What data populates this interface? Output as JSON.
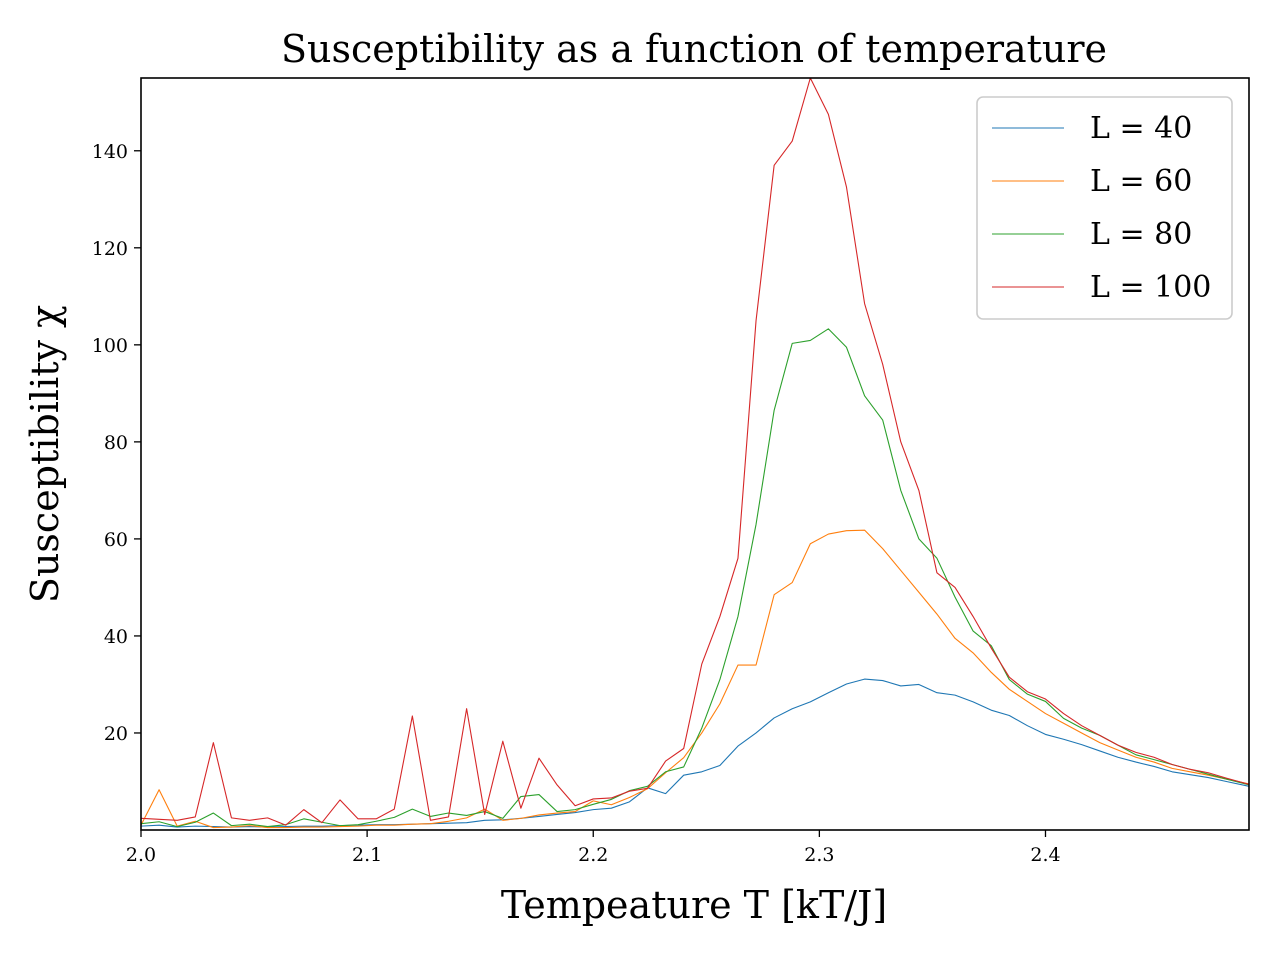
{
  "chart_data": {
    "type": "line",
    "title": "Susceptibility as a function of temperature",
    "xlabel": "Tempeature T [kT/J]",
    "ylabel": "Susceptibility χ",
    "xlim": [
      2.0,
      2.49
    ],
    "ylim": [
      0,
      155
    ],
    "xticks": [
      2.0,
      2.1,
      2.2,
      2.3,
      2.4
    ],
    "xtick_labels": [
      "2.0",
      "2.1",
      "2.2",
      "2.3",
      "2.4"
    ],
    "yticks": [
      20,
      40,
      60,
      80,
      100,
      120,
      140
    ],
    "ytick_labels": [
      "20",
      "40",
      "60",
      "80",
      "100",
      "120",
      "140"
    ],
    "grid": false,
    "legend_position": "top-right",
    "x": [
      2.0,
      2.008,
      2.016,
      2.024,
      2.032,
      2.04,
      2.048,
      2.056,
      2.064,
      2.072,
      2.08,
      2.088,
      2.096,
      2.104,
      2.112,
      2.12,
      2.128,
      2.136,
      2.144,
      2.152,
      2.16,
      2.168,
      2.176,
      2.184,
      2.192,
      2.2,
      2.208,
      2.216,
      2.224,
      2.232,
      2.24,
      2.248,
      2.256,
      2.264,
      2.272,
      2.28,
      2.288,
      2.296,
      2.304,
      2.312,
      2.32,
      2.328,
      2.336,
      2.344,
      2.352,
      2.36,
      2.368,
      2.376,
      2.384,
      2.392,
      2.4,
      2.408,
      2.416,
      2.424,
      2.432,
      2.44,
      2.448,
      2.456,
      2.464,
      2.472,
      2.48,
      2.49
    ],
    "series": [
      {
        "name": "L = 40",
        "color": "#1f77b4",
        "values": [
          0.8,
          1.0,
          0.6,
          0.8,
          0.7,
          0.6,
          0.7,
          0.6,
          0.7,
          0.8,
          0.8,
          0.9,
          1.0,
          1.1,
          1.1,
          1.2,
          1.3,
          1.4,
          1.5,
          2.0,
          2.1,
          2.4,
          2.8,
          3.2,
          3.6,
          4.2,
          4.5,
          5.8,
          8.7,
          7.5,
          11.3,
          12.0,
          13.3,
          17.3,
          20.0,
          23.1,
          25.0,
          26.4,
          28.3,
          30.1,
          31.1,
          30.8,
          29.7,
          30.0,
          28.3,
          27.8,
          26.4,
          24.7,
          23.6,
          21.5,
          19.7,
          18.7,
          17.6,
          16.3,
          15.0,
          14.0,
          13.1,
          12.0,
          11.4,
          10.8,
          10.0,
          9.0
        ]
      },
      {
        "name": "L = 60",
        "color": "#ff7f0e",
        "values": [
          1.0,
          8.3,
          0.8,
          1.8,
          0.5,
          0.6,
          0.9,
          0.5,
          0.5,
          0.6,
          0.6,
          0.7,
          0.8,
          1.0,
          1.0,
          1.2,
          1.3,
          1.8,
          2.5,
          4.3,
          2.0,
          2.4,
          3.1,
          3.5,
          3.8,
          6.0,
          5.2,
          6.7,
          8.5,
          11.8,
          14.9,
          20.0,
          26.0,
          34.0,
          34.0,
          48.5,
          51.0,
          59.0,
          61.0,
          61.7,
          61.8,
          58.0,
          53.5,
          49.0,
          44.5,
          39.5,
          36.5,
          32.5,
          29.0,
          26.5,
          24.0,
          22.0,
          20.0,
          18.0,
          16.5,
          15.0,
          14.0,
          12.7,
          12.0,
          11.3,
          10.5,
          9.5
        ]
      },
      {
        "name": "L = 80",
        "color": "#2ca02c",
        "values": [
          1.3,
          1.7,
          0.7,
          1.6,
          3.5,
          0.9,
          1.2,
          0.7,
          1.1,
          2.3,
          1.6,
          0.9,
          1.1,
          1.8,
          2.6,
          4.3,
          2.8,
          3.5,
          3.0,
          3.8,
          2.4,
          6.9,
          7.3,
          3.8,
          4.2,
          5.3,
          6.3,
          8.1,
          9.0,
          12.0,
          13.0,
          21.0,
          31.0,
          44.0,
          63.0,
          86.5,
          100.3,
          100.9,
          103.3,
          99.5,
          89.5,
          84.5,
          70.0,
          60.0,
          56.0,
          48.0,
          41.0,
          38.0,
          31.0,
          28.0,
          26.5,
          23.0,
          21.0,
          19.5,
          17.5,
          15.5,
          14.5,
          13.5,
          12.5,
          11.5,
          10.5,
          9.3
        ]
      },
      {
        "name": "L = 100",
        "color": "#d62728",
        "values": [
          2.4,
          2.2,
          2.0,
          2.7,
          18.0,
          2.5,
          2.0,
          2.5,
          1.0,
          4.2,
          1.5,
          6.2,
          2.3,
          2.3,
          4.3,
          23.5,
          2.0,
          2.7,
          25.0,
          3.2,
          18.3,
          4.5,
          14.8,
          9.3,
          5.0,
          6.4,
          6.6,
          8.0,
          8.6,
          14.2,
          16.8,
          34.2,
          44.0,
          56.0,
          105.0,
          137.0,
          142.0,
          155.0,
          147.5,
          132.5,
          108.5,
          96.0,
          80.0,
          70.0,
          53.0,
          50.0,
          44.0,
          37.5,
          31.5,
          28.5,
          27.0,
          24.0,
          21.5,
          19.5,
          17.5,
          16.0,
          15.0,
          13.5,
          12.5,
          11.8,
          10.7,
          9.4
        ]
      }
    ]
  }
}
